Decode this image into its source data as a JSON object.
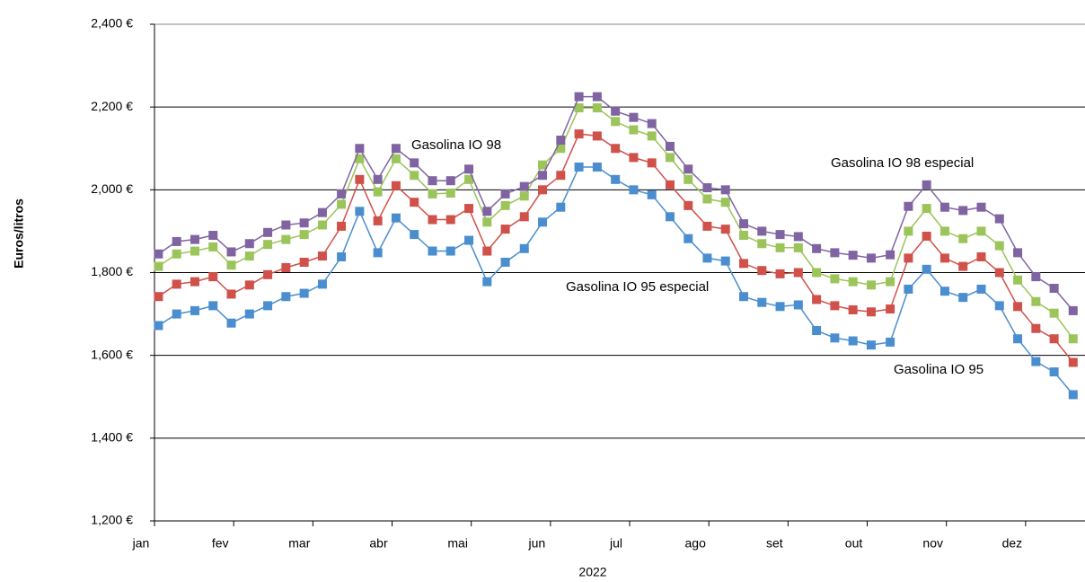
{
  "chart_data": {
    "type": "line",
    "x_label": "2022",
    "y_label": "Euros/litros",
    "xlim": [
      0,
      11.75
    ],
    "xticks": [
      {
        "value": 0,
        "label": "jan"
      },
      {
        "value": 1,
        "label": "fev"
      },
      {
        "value": 2,
        "label": "mar"
      },
      {
        "value": 3,
        "label": "abr"
      },
      {
        "value": 4,
        "label": "mai"
      },
      {
        "value": 5,
        "label": "jun"
      },
      {
        "value": 6,
        "label": "jul"
      },
      {
        "value": 7,
        "label": "ago"
      },
      {
        "value": 8,
        "label": "set"
      },
      {
        "value": 9,
        "label": "out"
      },
      {
        "value": 10,
        "label": "nov"
      },
      {
        "value": 11,
        "label": "dez"
      }
    ],
    "ylim": [
      1200,
      2400
    ],
    "yticks": [
      {
        "value": 1200,
        "label": "1,200 €"
      },
      {
        "value": 1400,
        "label": "1,400 €"
      },
      {
        "value": 1600,
        "label": "1,600 €"
      },
      {
        "value": 1800,
        "label": "1,800 €"
      },
      {
        "value": 2000,
        "label": "2,000 €"
      },
      {
        "value": 2200,
        "label": "2,200 €"
      },
      {
        "value": 2400,
        "label": "2,400 €"
      }
    ],
    "grid": true,
    "x": [
      0.05,
      0.28,
      0.51,
      0.74,
      0.97,
      1.2,
      1.43,
      1.66,
      1.89,
      2.12,
      2.36,
      2.59,
      2.82,
      3.05,
      3.28,
      3.51,
      3.74,
      3.97,
      4.2,
      4.43,
      4.67,
      4.9,
      5.13,
      5.36,
      5.59,
      5.82,
      6.05,
      6.28,
      6.51,
      6.74,
      6.98,
      7.21,
      7.44,
      7.67,
      7.9,
      8.13,
      8.36,
      8.59,
      8.82,
      9.05,
      9.29,
      9.52,
      9.75,
      9.98,
      10.21,
      10.44,
      10.67,
      10.9,
      11.13,
      11.36,
      11.6
    ],
    "series": [
      {
        "name": "Gasolina IO 95",
        "color": "#4a8ecf",
        "values": [
          1672,
          1700,
          1708,
          1720,
          1678,
          1700,
          1720,
          1742,
          1750,
          1772,
          1838,
          1948,
          1848,
          1932,
          1892,
          1852,
          1852,
          1878,
          1778,
          1825,
          1858,
          1922,
          1958,
          2055,
          2055,
          2025,
          2000,
          1988,
          1935,
          1882,
          1835,
          1828,
          1742,
          1728,
          1718,
          1722,
          1660,
          1642,
          1635,
          1625,
          1632,
          1760,
          1808,
          1755,
          1740,
          1760,
          1720,
          1640,
          1585,
          1560,
          1505
        ]
      },
      {
        "name": "Gasolina IO 95 especial",
        "color": "#d0504a",
        "values": [
          1742,
          1772,
          1778,
          1790,
          1748,
          1770,
          1795,
          1812,
          1825,
          1840,
          1912,
          2025,
          1925,
          2010,
          1970,
          1928,
          1928,
          1955,
          1852,
          1905,
          1935,
          2000,
          2035,
          2135,
          2130,
          2100,
          2078,
          2065,
          2012,
          1962,
          1912,
          1905,
          1822,
          1805,
          1797,
          1800,
          1735,
          1720,
          1710,
          1705,
          1712,
          1835,
          1888,
          1835,
          1815,
          1838,
          1800,
          1718,
          1665,
          1640,
          1583
        ]
      },
      {
        "name": "Gasolina IO 98",
        "color": "#9bc45a",
        "values": [
          1815,
          1845,
          1852,
          1862,
          1818,
          1840,
          1868,
          1880,
          1892,
          1915,
          1965,
          2075,
          1995,
          2075,
          2035,
          1990,
          1992,
          2025,
          1922,
          1962,
          1985,
          2060,
          2100,
          2198,
          2198,
          2165,
          2145,
          2130,
          2078,
          2025,
          1978,
          1970,
          1890,
          1870,
          1860,
          1860,
          1800,
          1785,
          1778,
          1770,
          1778,
          1900,
          1955,
          1900,
          1882,
          1900,
          1865,
          1782,
          1730,
          1702,
          1640
        ]
      },
      {
        "name": "Gasolina IO 98 especial",
        "color": "#8064a2",
        "values": [
          1845,
          1875,
          1880,
          1890,
          1850,
          1870,
          1897,
          1915,
          1920,
          1945,
          1990,
          2100,
          2025,
          2100,
          2065,
          2022,
          2022,
          2050,
          1948,
          1990,
          2008,
          2035,
          2120,
          2225,
          2225,
          2190,
          2175,
          2160,
          2105,
          2050,
          2005,
          2000,
          1918,
          1900,
          1892,
          1887,
          1858,
          1848,
          1842,
          1835,
          1843,
          1960,
          2012,
          1958,
          1950,
          1958,
          1930,
          1848,
          1790,
          1762,
          1708
        ]
      }
    ]
  }
}
